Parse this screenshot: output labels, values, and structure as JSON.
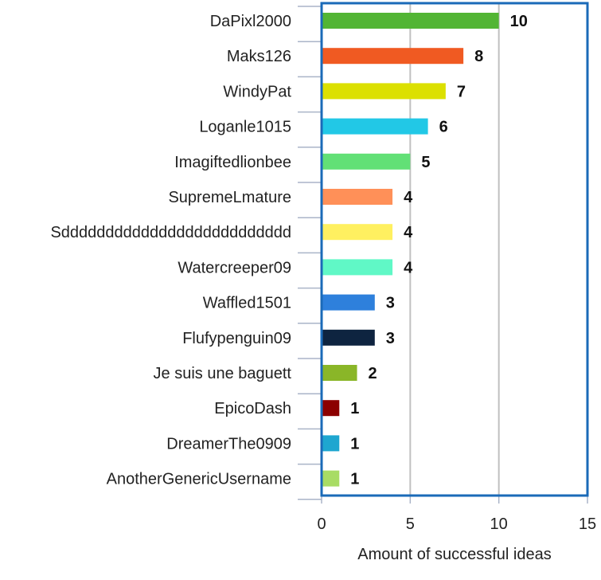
{
  "chart_data": {
    "type": "bar",
    "orientation": "horizontal",
    "title": "",
    "xlabel": "Amount of successful ideas",
    "ylabel": "",
    "xlim": [
      0,
      15
    ],
    "xticks": [
      "0",
      "5",
      "10",
      "15"
    ],
    "grid": true,
    "categories": [
      "DaPixl2000",
      "Maks126",
      "WindyPat",
      "Loganle1015",
      "Imagiftedlionbee",
      "SupremeLmature",
      "Sdddddddddddddddddddddddddd",
      "Watercreeper09",
      "Waffled1501",
      "Flufypenguin09",
      "Je suis une baguett",
      "EpicoDash",
      "DreamerThe0909",
      "AnotherGenericUsername"
    ],
    "values": [
      10,
      8,
      7,
      6,
      5,
      4,
      4,
      4,
      3,
      3,
      2,
      1,
      1,
      1
    ],
    "value_labels": [
      "10",
      "8",
      "7",
      "6",
      "5",
      "4",
      "4",
      "4",
      "3",
      "3",
      "2",
      "1",
      "1",
      "1"
    ],
    "colors": [
      "#52b534",
      "#f05a22",
      "#dce000",
      "#22c8e6",
      "#62e076",
      "#ff9058",
      "#fff060",
      "#60f8c6",
      "#2e80dc",
      "#0e2440",
      "#8ab628",
      "#8c0000",
      "#1ea6d0",
      "#a8dc64"
    ]
  },
  "style": {
    "frame_color": "#1a6ab8",
    "grid_color": "#c0c0c0",
    "axis_color": "#aab4c8"
  }
}
